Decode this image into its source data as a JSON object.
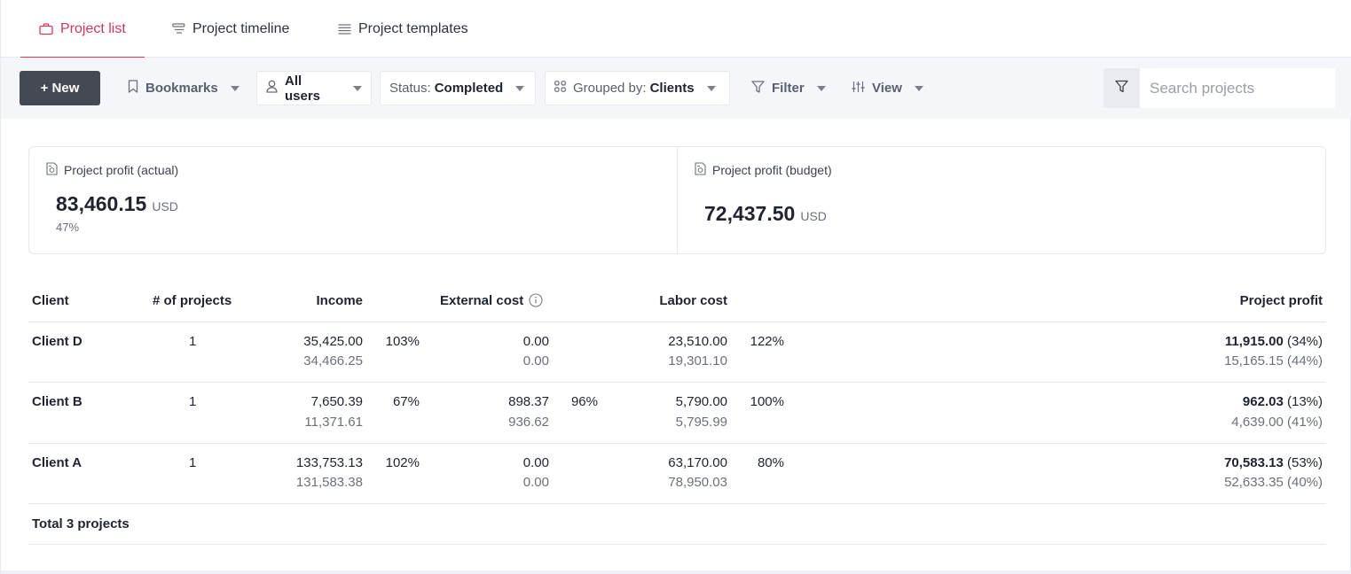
{
  "tabs": [
    {
      "label": "Project list",
      "icon": "briefcase-icon",
      "active": true
    },
    {
      "label": "Project timeline",
      "icon": "timeline-icon",
      "active": false
    },
    {
      "label": "Project templates",
      "icon": "list-icon",
      "active": false
    }
  ],
  "toolbar": {
    "new_label": "+ New",
    "bookmarks_label": "Bookmarks",
    "users_label": "All users",
    "status_prefix": "Status:",
    "status_value": "Completed",
    "grouped_prefix": "Grouped by:",
    "grouped_value": "Clients",
    "filter_label": "Filter",
    "view_label": "View",
    "search_placeholder": "Search projects"
  },
  "summary": {
    "actual": {
      "title": "Project profit (actual)",
      "value": "83,460.15",
      "currency": "USD",
      "percent": "47%"
    },
    "budget": {
      "title": "Project profit (budget)",
      "value": "72,437.50",
      "currency": "USD"
    }
  },
  "table": {
    "headers": {
      "client": "Client",
      "projects": "# of projects",
      "income": "Income",
      "external_cost": "External cost",
      "labor_cost": "Labor cost",
      "project_profit": "Project profit"
    },
    "rows": [
      {
        "client": "Client D",
        "projects": "1",
        "income_actual": "35,425.00",
        "income_budget": "34,466.25",
        "income_pct": "103%",
        "ext_actual": "0.00",
        "ext_budget": "0.00",
        "ext_pct": "",
        "labor_actual": "23,510.00",
        "labor_budget": "19,301.10",
        "labor_pct": "122%",
        "profit_actual": "11,915.00",
        "profit_actual_pct": "(34%)",
        "profit_budget": "15,165.15 (44%)"
      },
      {
        "client": "Client B",
        "projects": "1",
        "income_actual": "7,650.39",
        "income_budget": "11,371.61",
        "income_pct": "67%",
        "ext_actual": "898.37",
        "ext_budget": "936.62",
        "ext_pct": "96%",
        "labor_actual": "5,790.00",
        "labor_budget": "5,795.99",
        "labor_pct": "100%",
        "profit_actual": "962.03",
        "profit_actual_pct": "(13%)",
        "profit_budget": "4,639.00 (41%)"
      },
      {
        "client": "Client A",
        "projects": "1",
        "income_actual": "133,753.13",
        "income_budget": "131,583.38",
        "income_pct": "102%",
        "ext_actual": "0.00",
        "ext_budget": "0.00",
        "ext_pct": "",
        "labor_actual": "63,170.00",
        "labor_budget": "78,950.03",
        "labor_pct": "80%",
        "profit_actual": "70,583.13",
        "profit_actual_pct": "(53%)",
        "profit_budget": "52,633.35 (40%)"
      }
    ],
    "total_label": "Total 3 projects"
  },
  "colors": {
    "accent": "#d5365a",
    "primary_button": "#454953"
  }
}
